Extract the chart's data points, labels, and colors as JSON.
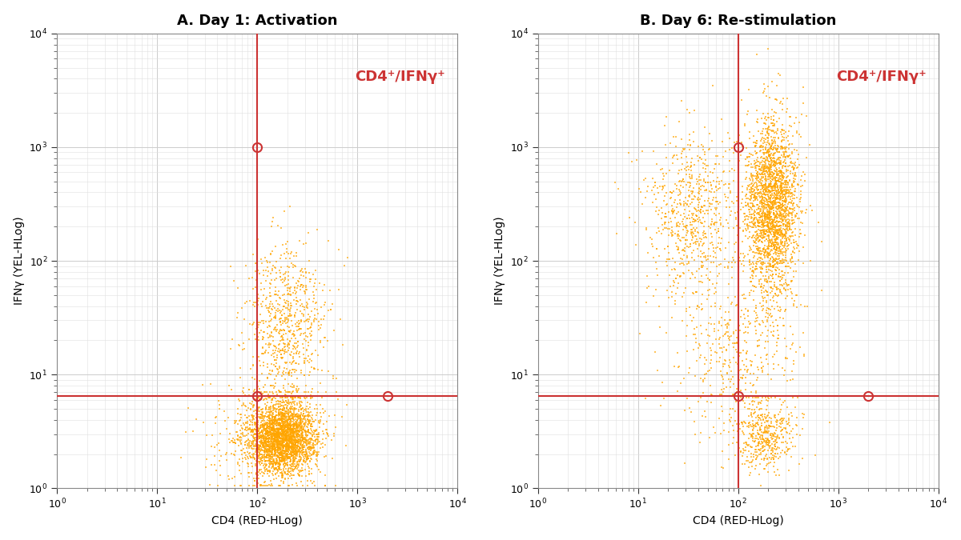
{
  "title_A": "A. Day 1: Activation",
  "title_B": "B. Day 6: Re-stimulation",
  "xlabel": "CD4 (RED-HLog)",
  "ylabel": "IFNγ (YEL-HLog)",
  "annotation": "CD4⁺/IFNγ⁺",
  "xlim": [
    1,
    10000
  ],
  "ylim": [
    1,
    10000
  ],
  "gate_color": "#cc3333",
  "dot_color": "#FFA500",
  "dot_alpha": 0.65,
  "dot_size": 2.5,
  "background_color": "#ffffff",
  "grid_major_color": "#cccccc",
  "grid_minor_color": "#e0e0e0",
  "title_fontsize": 13,
  "axis_label_fontsize": 10,
  "tick_fontsize": 9,
  "annotation_fontsize": 13,
  "gate_vline_A": 100,
  "gate_hline_A": 6.5,
  "gate_vline_B": 100,
  "gate_hline_B": 6.5,
  "circle_A": [
    [
      100,
      1000
    ],
    [
      100,
      6.5
    ],
    [
      2000,
      6.5
    ]
  ],
  "circle_B": [
    [
      100,
      1000
    ],
    [
      100,
      6.5
    ],
    [
      2000,
      6.5
    ]
  ],
  "n_points_A": 4000,
  "n_points_B": 4000,
  "seed_A": 42,
  "seed_B": 7
}
